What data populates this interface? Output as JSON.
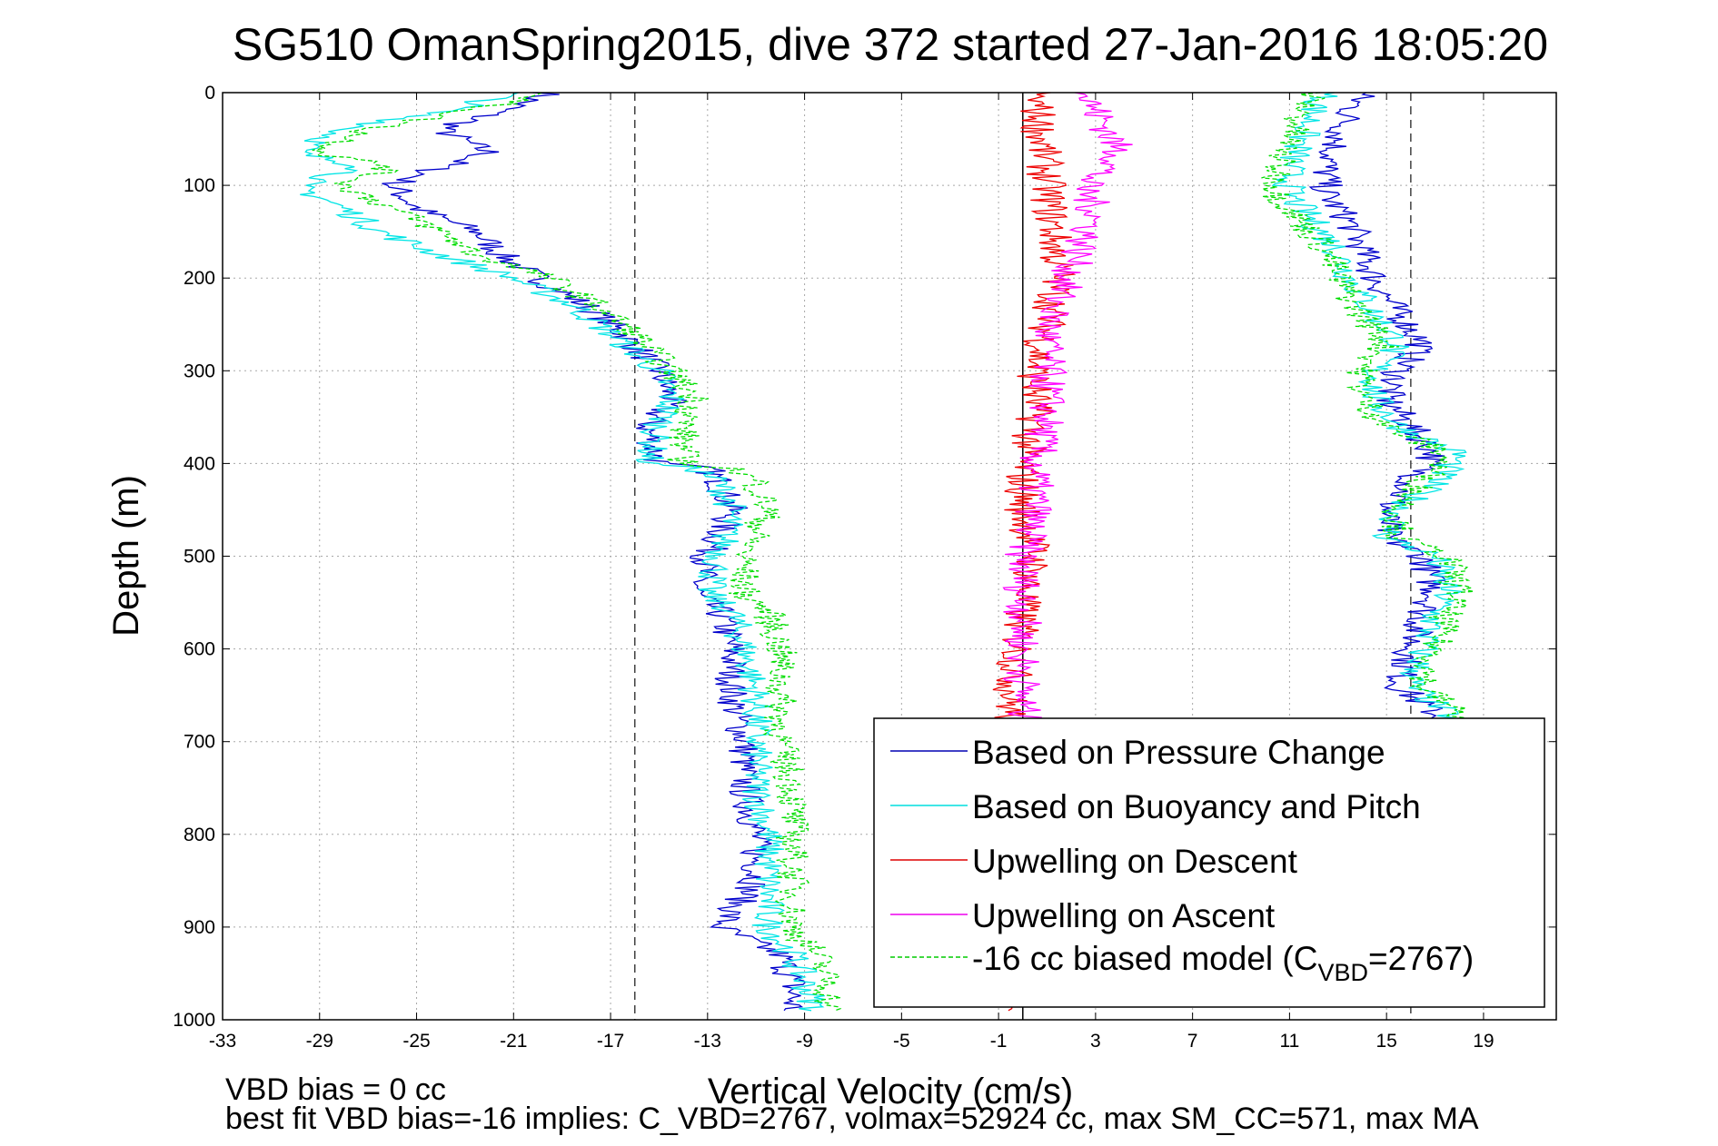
{
  "chart_data": {
    "type": "line",
    "title": "SG510 OmanSpring2015, dive 372 started 27-Jan-2016 18:05:20",
    "xlabel": "Vertical Velocity (cm/s)",
    "ylabel": "Depth (m)",
    "xlim": [
      -33,
      22
    ],
    "ylim": [
      0,
      1000
    ],
    "y_reversed": true,
    "grid": true,
    "legend_position": "bottom-right",
    "xticks": [
      "-33",
      "-29",
      "-25",
      "-21",
      "-17",
      "-13",
      "-9",
      "-5",
      "-1",
      "3",
      "7",
      "11",
      "15",
      "19"
    ],
    "yticks": [
      "0",
      "100",
      "200",
      "300",
      "400",
      "500",
      "600",
      "700",
      "800",
      "900",
      "1000"
    ],
    "xtick_values": [
      -33,
      -29,
      -25,
      -21,
      -17,
      -13,
      -9,
      -5,
      -1,
      3,
      7,
      11,
      15,
      19
    ],
    "ytick_values": [
      0,
      100,
      200,
      300,
      400,
      500,
      600,
      700,
      800,
      900,
      1000
    ],
    "reference_lines": [
      {
        "x": 0,
        "style": "solid",
        "color": "#000000"
      },
      {
        "x": -16,
        "style": "dashed",
        "color": "#404040"
      },
      {
        "x": 16,
        "style": "dashed",
        "color": "#404040"
      }
    ],
    "series": [
      {
        "name": "Based on Pressure Change",
        "color": "#0000cc",
        "legend_color": "#0000b3",
        "descent": {
          "depth": [
            0,
            15,
            40,
            65,
            80,
            100,
            125,
            150,
            175,
            200,
            230,
            260,
            300,
            330,
            360,
            400,
            405,
            420,
            450,
            500,
            540,
            560,
            600,
            650,
            700,
            750,
            800,
            850,
            900,
            930,
            960,
            990
          ],
          "velocity": [
            -19.5,
            -21,
            -24,
            -22,
            -24,
            -26,
            -25,
            -22.5,
            -21.5,
            -20,
            -18,
            -16.5,
            -15,
            -14.5,
            -15.5,
            -15,
            -13,
            -12.5,
            -12,
            -13,
            -13.5,
            -12.5,
            -12,
            -12,
            -11.5,
            -11.5,
            -11,
            -11,
            -12.5,
            -10,
            -9.5,
            -9.5
          ]
        },
        "ascent": {
          "depth": [
            0,
            20,
            50,
            80,
            110,
            140,
            170,
            200,
            240,
            270,
            300,
            330,
            360,
            390,
            420,
            450,
            480,
            500,
            540,
            560,
            600,
            640,
            660,
            680
          ],
          "velocity": [
            14,
            13.5,
            13,
            12.5,
            12.5,
            13.5,
            14,
            14.5,
            15.5,
            16.5,
            15.5,
            15,
            16,
            17,
            16,
            15,
            15,
            16.5,
            17,
            16.5,
            16,
            15.5,
            16.5,
            17.5
          ]
        }
      },
      {
        "name": "Based on Buoyancy and Pitch",
        "color": "#00e5e5",
        "legend_color": "#00dddd",
        "descent": {
          "depth": [
            0,
            15,
            40,
            65,
            80,
            100,
            125,
            150,
            175,
            200,
            230,
            260,
            300,
            330,
            360,
            400,
            405,
            420,
            450,
            500,
            540,
            560,
            600,
            650,
            700,
            750,
            800,
            850,
            900,
            930,
            960,
            990
          ],
          "velocity": [
            -21,
            -23,
            -28,
            -30,
            -27,
            -30,
            -28,
            -26.5,
            -24,
            -21,
            -18.5,
            -17,
            -15,
            -14.5,
            -15,
            -15.5,
            -13.5,
            -12.5,
            -12,
            -12.5,
            -13,
            -12,
            -11.5,
            -11,
            -11,
            -11,
            -10.5,
            -10.5,
            -10.5,
            -9.5,
            -9,
            -8.5
          ]
        },
        "ascent": {
          "depth": [
            0,
            20,
            50,
            80,
            110,
            140,
            170,
            200,
            240,
            270,
            300,
            330,
            360,
            390,
            420,
            450,
            480,
            500,
            540,
            560,
            600,
            640,
            660,
            680
          ],
          "velocity": [
            12.5,
            12,
            11.5,
            11,
            11,
            12,
            13,
            13.5,
            14.5,
            15.5,
            14.5,
            14.5,
            15.5,
            18,
            17,
            15.5,
            15,
            17,
            17.5,
            17,
            16.5,
            16,
            17,
            18
          ]
        }
      },
      {
        "name": "Upwelling on Descent",
        "color": "#ee0000",
        "legend_color": "#dd0000",
        "descent": {
          "depth": [
            0,
            200,
            250,
            300,
            350,
            400,
            450,
            500,
            550,
            600,
            650,
            700,
            750,
            800,
            850,
            900,
            950,
            990
          ],
          "velocity": [
            0.5,
            1.5,
            1,
            0.5,
            0.5,
            0,
            0,
            0.5,
            0,
            -0.2,
            -0.5,
            -0.5,
            -0.3,
            -0.2,
            0,
            -0.1,
            0,
            0.2
          ]
        }
      },
      {
        "name": "Upwelling on Ascent",
        "color": "#ff00ff",
        "legend_color": "#ee00ee",
        "ascent": {
          "depth": [
            0,
            40,
            70,
            100,
            130,
            160,
            190,
            220,
            260,
            300,
            350,
            400,
            450,
            500,
            550,
            600,
            650,
            680
          ],
          "velocity": [
            2.5,
            3.5,
            4,
            2.5,
            3,
            2.5,
            2,
            1.5,
            1,
            1,
            1,
            0.5,
            0.5,
            0,
            0,
            0,
            0,
            0
          ]
        }
      },
      {
        "name": "-16 cc biased model (C",
        "name_sub": "VBD",
        "name_tail": "=2767)",
        "color": "#00dd00",
        "legend_color": "#00cc00",
        "dashed": true,
        "descent": {
          "depth": [
            0,
            15,
            40,
            65,
            80,
            100,
            125,
            150,
            175,
            200,
            230,
            260,
            300,
            330,
            360,
            400,
            405,
            420,
            450,
            500,
            540,
            560,
            600,
            650,
            700,
            750,
            800,
            850,
            900,
            930,
            960,
            990
          ],
          "velocity": [
            -19.5,
            -22,
            -27,
            -29,
            -26,
            -28,
            -26,
            -24,
            -22.5,
            -19.5,
            -17.5,
            -16,
            -14.5,
            -13.5,
            -14,
            -14,
            -12,
            -11,
            -10.5,
            -11.5,
            -11.5,
            -10.5,
            -10,
            -10,
            -10,
            -9.5,
            -9.5,
            -9.5,
            -9.5,
            -8.5,
            -8,
            -8
          ]
        },
        "ascent": {
          "depth": [
            0,
            20,
            50,
            80,
            110,
            140,
            170,
            200,
            240,
            270,
            300,
            330,
            360,
            390,
            420,
            450,
            480,
            500,
            540,
            560,
            600,
            640,
            660,
            680
          ],
          "velocity": [
            12,
            11.5,
            11,
            10.5,
            10.5,
            11.5,
            12.5,
            13,
            14,
            15,
            14,
            14,
            15,
            17.5,
            16.5,
            15.5,
            15.5,
            17.5,
            18,
            17.5,
            17,
            16.5,
            17.5,
            18.5
          ]
        }
      }
    ]
  },
  "footer": {
    "line1": "VBD bias = 0 cc",
    "line2": "best fit VBD bias=-16 implies: C_VBD=2767, volmax=52924 cc, max SM_CC=571, max MA"
  }
}
